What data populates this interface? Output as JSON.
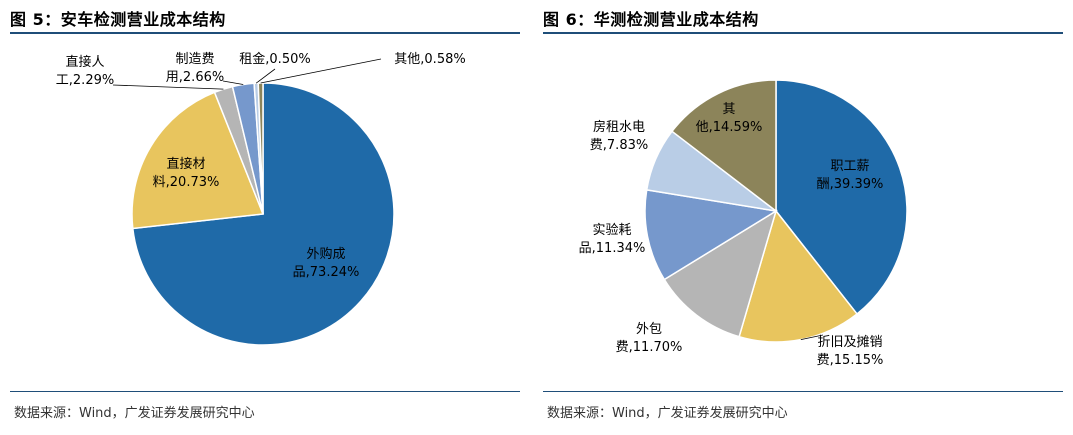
{
  "charts": [
    {
      "title": "图 5：安车检测营业成本结构",
      "source": "数据来源：Wind，广发证券发展研究中心"
    },
    {
      "title": "图 6：华测检测营业成本结构",
      "source": "数据来源：Wind，广发证券发展研究中心"
    }
  ],
  "chart_data": [
    {
      "type": "pie",
      "title": "图 5：安车检测营业成本结构",
      "slices": [
        {
          "name": "外购成品",
          "value": 73.24,
          "label_lines": [
            "外购成",
            "品,73.24%"
          ],
          "color": "#1f6aa8"
        },
        {
          "name": "直接材料",
          "value": 20.73,
          "label_lines": [
            "直接材",
            "料,20.73%"
          ],
          "color": "#e8c55e"
        },
        {
          "name": "直接人工",
          "value": 2.29,
          "label_lines": [
            "直接人",
            "工,2.29%"
          ],
          "color": "#b5b5b5"
        },
        {
          "name": "制造费用",
          "value": 2.66,
          "label_lines": [
            "制造费",
            "用,2.66%"
          ],
          "color": "#7698cc"
        },
        {
          "name": "租金",
          "value": 0.5,
          "label_lines": [
            "租金,0.50%"
          ],
          "color": "#b9cde6"
        },
        {
          "name": "其他",
          "value": 0.58,
          "label_lines": [
            "其他,0.58%"
          ],
          "color": "#8c845a"
        }
      ]
    },
    {
      "type": "pie",
      "title": "图 6：华测检测营业成本结构",
      "slices": [
        {
          "name": "职工薪酬",
          "value": 39.39,
          "label_lines": [
            "职工薪",
            "酬,39.39%"
          ],
          "color": "#1f6aa8"
        },
        {
          "name": "折旧及摊销费",
          "value": 15.15,
          "label_lines": [
            "折旧及摊销",
            "费,15.15%"
          ],
          "color": "#e8c55e"
        },
        {
          "name": "外包费",
          "value": 11.7,
          "label_lines": [
            "外包",
            "费,11.70%"
          ],
          "color": "#b5b5b5"
        },
        {
          "name": "实验耗品",
          "value": 11.34,
          "label_lines": [
            "实验耗",
            "品,11.34%"
          ],
          "color": "#7698cc"
        },
        {
          "name": "房租水电费",
          "value": 7.83,
          "label_lines": [
            "房租水电",
            "费,7.83%"
          ],
          "color": "#b9cde6"
        },
        {
          "name": "其他",
          "value": 14.59,
          "label_lines": [
            "其",
            "他,14.59%"
          ],
          "color": "#8c845a"
        }
      ]
    }
  ]
}
